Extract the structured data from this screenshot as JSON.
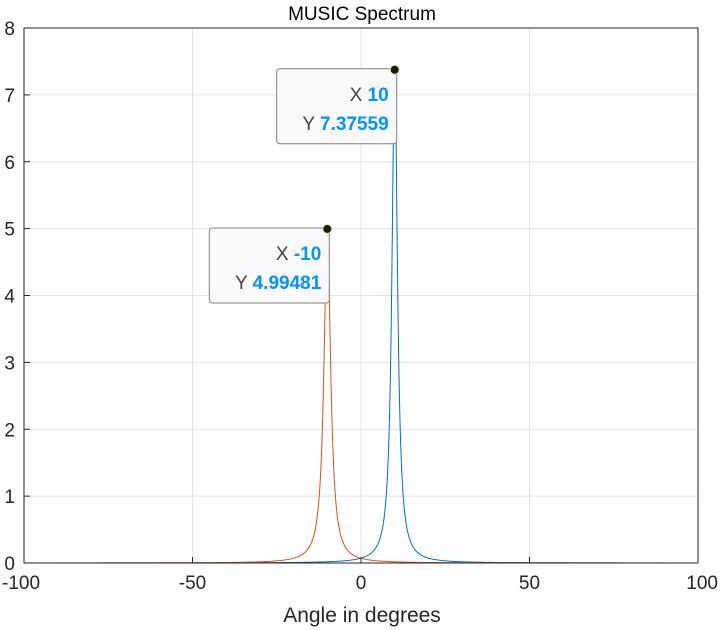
{
  "chart_data": {
    "type": "line",
    "title": "MUSIC Spectrum",
    "xlabel": "Angle in degrees",
    "ylabel": "",
    "xlim": [
      -100,
      100
    ],
    "ylim": [
      0,
      8
    ],
    "xticks": [
      -100,
      -50,
      0,
      50,
      100
    ],
    "yticks": [
      0,
      1,
      2,
      3,
      4,
      5,
      6,
      7,
      8
    ],
    "grid": true,
    "x_range": [
      -90,
      90
    ],
    "series": [
      {
        "color": "#0072BD",
        "peak": {
          "x": 10,
          "y": 7.37559
        },
        "half_width": 1.0
      },
      {
        "color": "#D95319",
        "peak": {
          "x": -10,
          "y": 4.99481
        },
        "half_width": 1.2
      }
    ],
    "datatips": [
      {
        "x_label": "X",
        "x_value": "10",
        "y_label": "Y",
        "y_value": "7.37559",
        "x": 10,
        "y": 7.37559
      },
      {
        "x_label": "X",
        "x_value": "-10",
        "y_label": "Y",
        "y_value": "4.99481",
        "x": -10,
        "y": 4.99481
      }
    ],
    "colors": {
      "datatip_value": "#0095FF",
      "grid": "#e3e3e3",
      "axis": "#262626"
    }
  }
}
